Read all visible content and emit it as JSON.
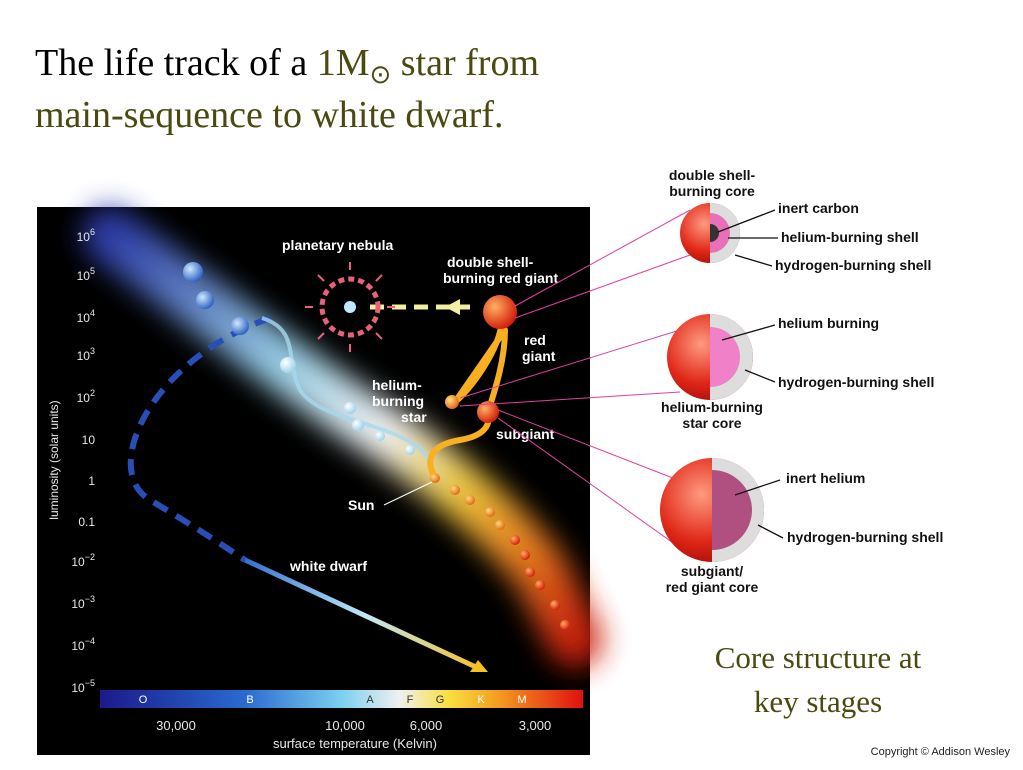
{
  "title": {
    "line_1_start": "The life track of a ",
    "line_1_mass": "1M",
    "line_1_symbol": "⊙",
    "line_1_end": " star from",
    "line_2": "main-sequence to white dwarf."
  },
  "diagram": {
    "y_axis_label": "luminosity (solar units)",
    "y_ticks": [
      {
        "base": "10",
        "exponent": "6"
      },
      {
        "base": "10",
        "exponent": "5"
      },
      {
        "base": "10",
        "exponent": "4"
      },
      {
        "base": "10",
        "exponent": "3"
      },
      {
        "base": "10",
        "exponent": "2"
      },
      "10",
      "1",
      "0.1",
      {
        "base": "10",
        "exponent": "−2"
      },
      {
        "base": "10",
        "exponent": "−3"
      },
      {
        "base": "10",
        "exponent": "−4"
      },
      {
        "base": "10",
        "exponent": "−5"
      }
    ],
    "x_ticks": [
      "30,000",
      "10,000",
      "6,000",
      "3,000"
    ],
    "x_axis_label": "surface temperature (Kelvin)",
    "spectral_classes": [
      "O",
      "B",
      "A",
      "F",
      "G",
      "K",
      "M"
    ],
    "labels": {
      "planetary_nebula": "planetary nebula",
      "double_shell_red_giant": [
        "double shell-",
        "burning red giant"
      ],
      "red_giant": [
        "red",
        "giant"
      ],
      "helium_burning_star": [
        "helium-",
        "burning",
        "star"
      ],
      "subgiant": "subgiant",
      "sun": "Sun",
      "white_dwarf": "white dwarf"
    }
  },
  "cores": [
    {
      "title": [
        "double shell-",
        "burning core"
      ],
      "parts": [
        "inert carbon",
        "helium-burning shell",
        "hydrogen-burning shell"
      ]
    },
    {
      "title": [
        "helium-burning",
        "star core"
      ],
      "parts": [
        "helium burning",
        "hydrogen-burning shell"
      ]
    },
    {
      "title": [
        "subgiant/",
        "red giant core"
      ],
      "parts": [
        "inert helium",
        "hydrogen-burning shell"
      ]
    }
  ],
  "caption": [
    "Core structure at",
    "key stages"
  ],
  "copyright": "Copyright © Addison Wesley"
}
